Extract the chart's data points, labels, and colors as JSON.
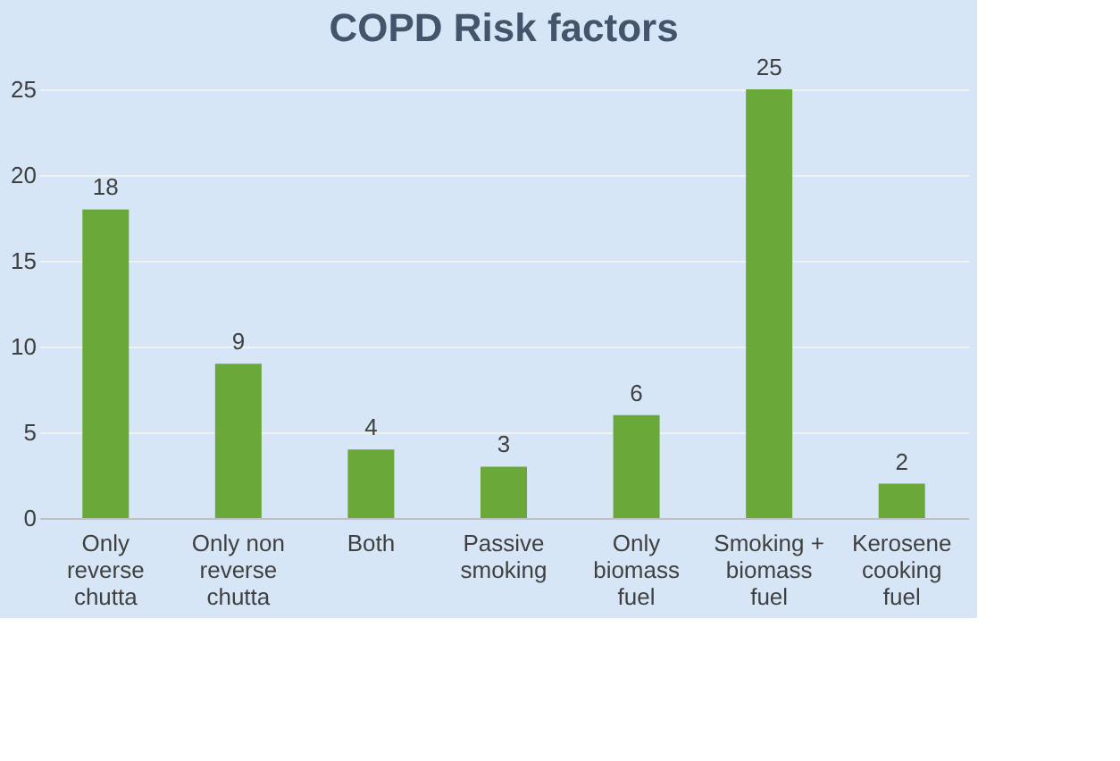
{
  "chart_data": {
    "type": "bar",
    "title": "COPD Risk factors",
    "categories": [
      "Only reverse chutta",
      "Only non reverse chutta",
      "Both",
      "Passive smoking",
      "Only biomass fuel",
      "Smoking + biomass fuel",
      "Kerosene cooking fuel"
    ],
    "values": [
      18,
      9,
      4,
      3,
      6,
      25,
      2
    ],
    "color": "#6aa83a",
    "ylim": [
      0,
      25
    ],
    "yticks": [
      0,
      5,
      10,
      15,
      20,
      25
    ],
    "grid": "y",
    "data_labels": true
  }
}
